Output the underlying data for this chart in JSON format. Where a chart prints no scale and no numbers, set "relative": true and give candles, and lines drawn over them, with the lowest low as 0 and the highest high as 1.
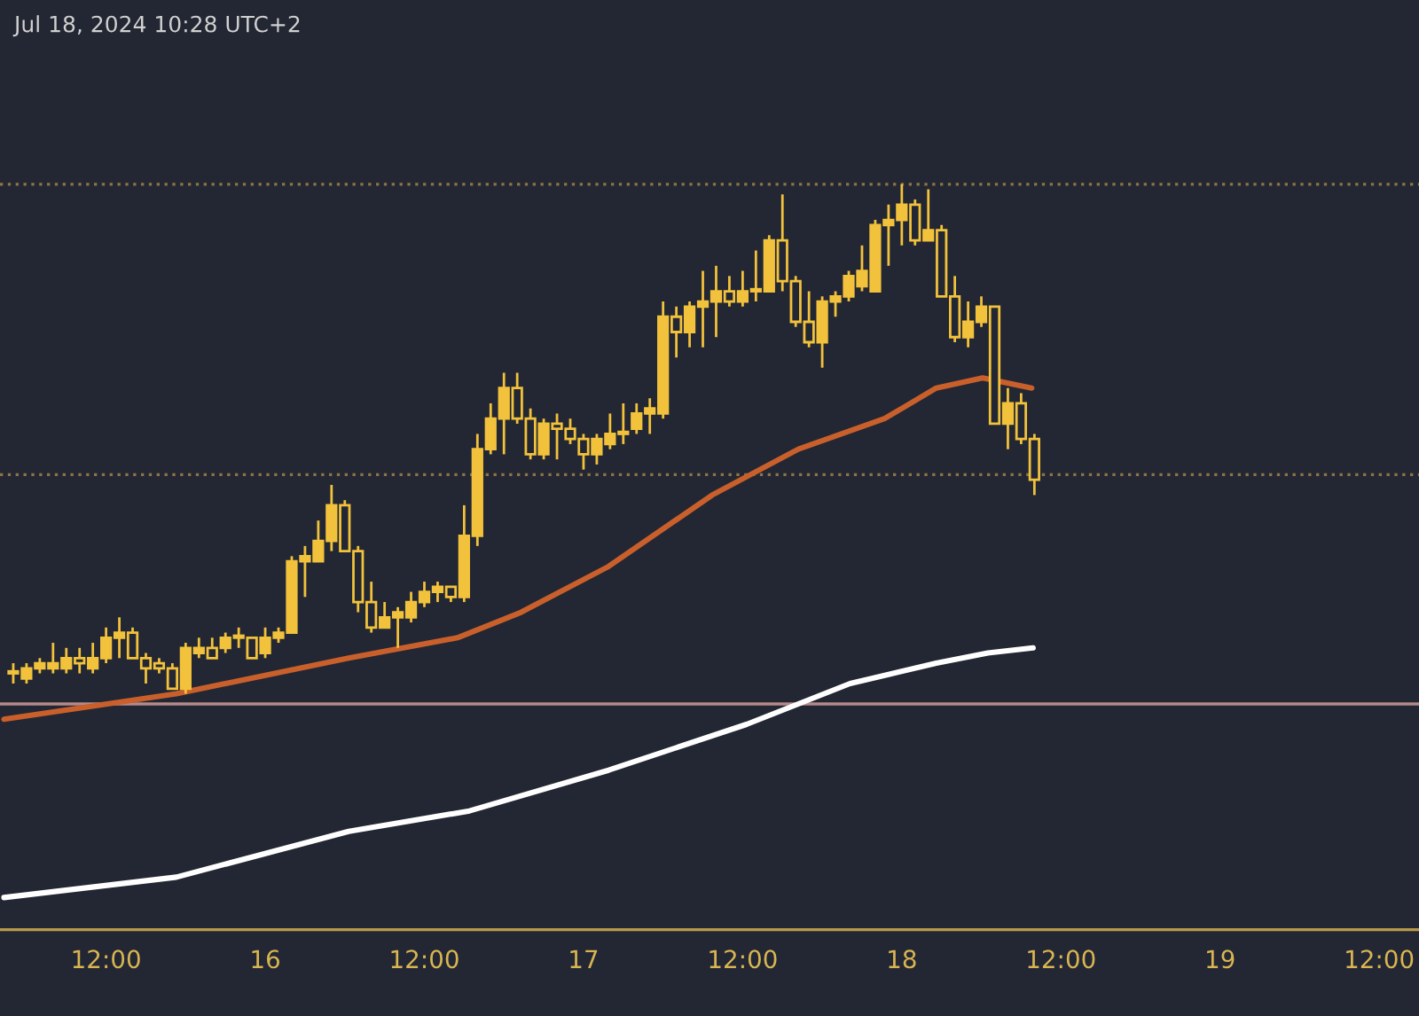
{
  "chart_data": {
    "type": "candlestick",
    "relative": true,
    "color": "#f2c23c",
    "tick_labels": "x",
    "grid": false,
    "legend": false,
    "annotations": [
      "Jul 18, 2024 10:28 UTC+2"
    ],
    "x": [
      "2024-07-15T05:00",
      "2024-07-15T06:00",
      "2024-07-15T07:00",
      "2024-07-15T08:00",
      "2024-07-15T09:00",
      "2024-07-15T10:00",
      "2024-07-15T11:00",
      "2024-07-15T12:00",
      "2024-07-15T13:00",
      "2024-07-15T14:00",
      "2024-07-15T15:00",
      "2024-07-15T16:00",
      "2024-07-15T17:00",
      "2024-07-15T18:00",
      "2024-07-15T19:00",
      "2024-07-15T20:00",
      "2024-07-15T21:00",
      "2024-07-15T22:00",
      "2024-07-15T23:00",
      "2024-07-16T00:00",
      "2024-07-16T01:00",
      "2024-07-16T02:00",
      "2024-07-16T03:00",
      "2024-07-16T04:00",
      "2024-07-16T05:00",
      "2024-07-16T06:00",
      "2024-07-16T07:00",
      "2024-07-16T08:00",
      "2024-07-16T09:00",
      "2024-07-16T10:00",
      "2024-07-16T11:00",
      "2024-07-16T12:00",
      "2024-07-16T13:00",
      "2024-07-16T14:00",
      "2024-07-16T15:00",
      "2024-07-16T16:00",
      "2024-07-16T17:00",
      "2024-07-16T18:00",
      "2024-07-16T19:00",
      "2024-07-16T20:00",
      "2024-07-16T21:00",
      "2024-07-16T22:00",
      "2024-07-16T23:00",
      "2024-07-17T00:00",
      "2024-07-17T01:00",
      "2024-07-17T02:00",
      "2024-07-17T03:00",
      "2024-07-17T04:00",
      "2024-07-17T05:00",
      "2024-07-17T06:00",
      "2024-07-17T07:00",
      "2024-07-17T08:00",
      "2024-07-17T09:00",
      "2024-07-17T10:00",
      "2024-07-17T11:00",
      "2024-07-17T12:00",
      "2024-07-17T13:00",
      "2024-07-17T14:00",
      "2024-07-17T15:00",
      "2024-07-17T16:00",
      "2024-07-17T17:00",
      "2024-07-17T18:00",
      "2024-07-17T19:00",
      "2024-07-17T20:00",
      "2024-07-17T21:00",
      "2024-07-17T22:00",
      "2024-07-17T23:00",
      "2024-07-18T00:00",
      "2024-07-18T01:00",
      "2024-07-18T02:00",
      "2024-07-18T03:00",
      "2024-07-18T04:00",
      "2024-07-18T05:00",
      "2024-07-18T06:00",
      "2024-07-18T07:00",
      "2024-07-18T08:00",
      "2024-07-18T09:00",
      "2024-07-18T10:00"
    ],
    "xlim": [
      "2024-07-15T04:00",
      "2024-07-19T15:00"
    ],
    "xticks": [
      {
        "value": "2024-07-15T12:00",
        "label": "12:00"
      },
      {
        "value": "2024-07-16",
        "label": "16"
      },
      {
        "value": "2024-07-16T12:00",
        "label": "12:00"
      },
      {
        "value": "2024-07-17",
        "label": "17"
      },
      {
        "value": "2024-07-17T12:00",
        "label": "12:00"
      },
      {
        "value": "2024-07-18",
        "label": "18"
      },
      {
        "value": "2024-07-18T12:00",
        "label": "12:00"
      },
      {
        "value": "2024-07-19",
        "label": "19"
      },
      {
        "value": "2024-07-19T12:00",
        "label": "12:00"
      }
    ],
    "ohlc": [
      [
        0.04,
        0.06,
        0.02,
        0.04
      ],
      [
        0.03,
        0.06,
        0.02,
        0.05
      ],
      [
        0.05,
        0.07,
        0.04,
        0.06
      ],
      [
        0.05,
        0.1,
        0.04,
        0.06
      ],
      [
        0.05,
        0.09,
        0.04,
        0.07
      ],
      [
        0.07,
        0.09,
        0.04,
        0.06
      ],
      [
        0.05,
        0.1,
        0.04,
        0.07
      ],
      [
        0.07,
        0.13,
        0.06,
        0.11
      ],
      [
        0.11,
        0.15,
        0.07,
        0.12
      ],
      [
        0.12,
        0.13,
        0.07,
        0.07
      ],
      [
        0.07,
        0.08,
        0.02,
        0.05
      ],
      [
        0.06,
        0.07,
        0.04,
        0.05
      ],
      [
        0.05,
        0.06,
        0.01,
        0.01
      ],
      [
        0.01,
        0.1,
        0,
        0.09
      ],
      [
        0.08,
        0.11,
        0.07,
        0.09
      ],
      [
        0.09,
        0.11,
        0.07,
        0.07
      ],
      [
        0.09,
        0.12,
        0.08,
        0.11
      ],
      [
        0.11,
        0.13,
        0.09,
        0.11
      ],
      [
        0.11,
        0.11,
        0.07,
        0.07
      ],
      [
        0.08,
        0.13,
        0.07,
        0.11
      ],
      [
        0.11,
        0.13,
        0.1,
        0.12
      ],
      [
        0.12,
        0.27,
        0.12,
        0.26
      ],
      [
        0.26,
        0.29,
        0.19,
        0.27
      ],
      [
        0.26,
        0.34,
        0.26,
        0.3
      ],
      [
        0.3,
        0.41,
        0.28,
        0.37
      ],
      [
        0.37,
        0.38,
        0.28,
        0.28
      ],
      [
        0.28,
        0.29,
        0.16,
        0.18
      ],
      [
        0.18,
        0.22,
        0.12,
        0.13
      ],
      [
        0.13,
        0.18,
        0.13,
        0.15
      ],
      [
        0.15,
        0.17,
        0.09,
        0.16
      ],
      [
        0.15,
        0.2,
        0.14,
        0.18
      ],
      [
        0.18,
        0.22,
        0.17,
        0.2
      ],
      [
        0.2,
        0.22,
        0.18,
        0.21
      ],
      [
        0.21,
        0.21,
        0.18,
        0.19
      ],
      [
        0.19,
        0.37,
        0.18,
        0.31
      ],
      [
        0.31,
        0.51,
        0.29,
        0.48
      ],
      [
        0.48,
        0.57,
        0.47,
        0.54
      ],
      [
        0.54,
        0.63,
        0.47,
        0.6
      ],
      [
        0.6,
        0.63,
        0.53,
        0.54
      ],
      [
        0.54,
        0.56,
        0.46,
        0.47
      ],
      [
        0.47,
        0.54,
        0.46,
        0.53
      ],
      [
        0.53,
        0.55,
        0.46,
        0.52
      ],
      [
        0.52,
        0.54,
        0.49,
        0.5
      ],
      [
        0.5,
        0.51,
        0.44,
        0.47
      ],
      [
        0.47,
        0.51,
        0.45,
        0.5
      ],
      [
        0.49,
        0.55,
        0.48,
        0.51
      ],
      [
        0.51,
        0.57,
        0.49,
        0.51
      ],
      [
        0.52,
        0.57,
        0.51,
        0.55
      ],
      [
        0.55,
        0.58,
        0.51,
        0.56
      ],
      [
        0.55,
        0.77,
        0.54,
        0.74
      ],
      [
        0.74,
        0.76,
        0.66,
        0.71
      ],
      [
        0.71,
        0.77,
        0.68,
        0.76
      ],
      [
        0.76,
        0.83,
        0.68,
        0.77
      ],
      [
        0.77,
        0.84,
        0.7,
        0.79
      ],
      [
        0.79,
        0.82,
        0.76,
        0.77
      ],
      [
        0.77,
        0.83,
        0.76,
        0.79
      ],
      [
        0.79,
        0.87,
        0.77,
        0.79
      ],
      [
        0.79,
        0.9,
        0.79,
        0.89
      ],
      [
        0.89,
        0.98,
        0.79,
        0.81
      ],
      [
        0.81,
        0.82,
        0.72,
        0.73
      ],
      [
        0.73,
        0.79,
        0.68,
        0.69
      ],
      [
        0.69,
        0.78,
        0.64,
        0.77
      ],
      [
        0.77,
        0.79,
        0.74,
        0.78
      ],
      [
        0.78,
        0.83,
        0.77,
        0.82
      ],
      [
        0.8,
        0.88,
        0.79,
        0.83
      ],
      [
        0.79,
        0.93,
        0.79,
        0.92
      ],
      [
        0.92,
        0.96,
        0.84,
        0.93
      ],
      [
        0.93,
        1,
        0.88,
        0.96
      ],
      [
        0.96,
        0.97,
        0.88,
        0.89
      ],
      [
        0.89,
        0.99,
        0.89,
        0.91
      ],
      [
        0.91,
        0.92,
        0.78,
        0.78
      ],
      [
        0.78,
        0.82,
        0.69,
        0.7
      ],
      [
        0.7,
        0.77,
        0.68,
        0.73
      ],
      [
        0.73,
        0.78,
        0.72,
        0.76
      ],
      [
        0.76,
        0.76,
        0.53,
        0.53
      ],
      [
        0.53,
        0.6,
        0.48,
        0.57
      ],
      [
        0.57,
        0.59,
        0.49,
        0.5
      ],
      [
        0.5,
        0.51,
        0.39,
        0.42
      ]
    ],
    "series": [
      {
        "type": "line",
        "color": "#c9602c",
        "x": [
          "2024-07-15T04:18",
          "2024-07-15T17:18",
          "2024-07-16T06:18",
          "2024-07-16T14:30",
          "2024-07-16T19:18",
          "2024-07-17T01:54",
          "2024-07-17T09:42",
          "2024-07-17T16:12",
          "2024-07-17T22:42",
          "2024-07-18T02:36",
          "2024-07-18T06:06",
          "2024-07-18T09:48"
        ],
        "values": [
          -0.05,
          0,
          0.07,
          0.11,
          0.16,
          0.25,
          0.39,
          0.48,
          0.54,
          0.6,
          0.62,
          0.6
        ]
      },
      {
        "type": "line",
        "color": "#ffffff",
        "x": [
          "2024-07-15T04:18",
          "2024-07-15T17:18",
          "2024-07-16T06:18",
          "2024-07-16T15:24",
          "2024-07-17T01:54",
          "2024-07-17T12:18",
          "2024-07-17T20:06",
          "2024-07-18T02:36",
          "2024-07-18T06:30",
          "2024-07-18T09:54"
        ],
        "values": [
          -0.4,
          -0.36,
          -0.27,
          -0.23,
          -0.15,
          -0.06,
          0.02,
          0.06,
          0.08,
          0.09
        ]
      }
    ],
    "ref_lines": [
      {
        "axis": "y",
        "value": 1.0,
        "color": "#8c7445",
        "line_style": "dotted"
      },
      {
        "axis": "y",
        "value": 0.43,
        "color": "#8c7445",
        "line_style": "dotted"
      },
      {
        "axis": "y",
        "value": -0.02,
        "color": "#b58a8a",
        "line_style": "solid"
      }
    ]
  }
}
